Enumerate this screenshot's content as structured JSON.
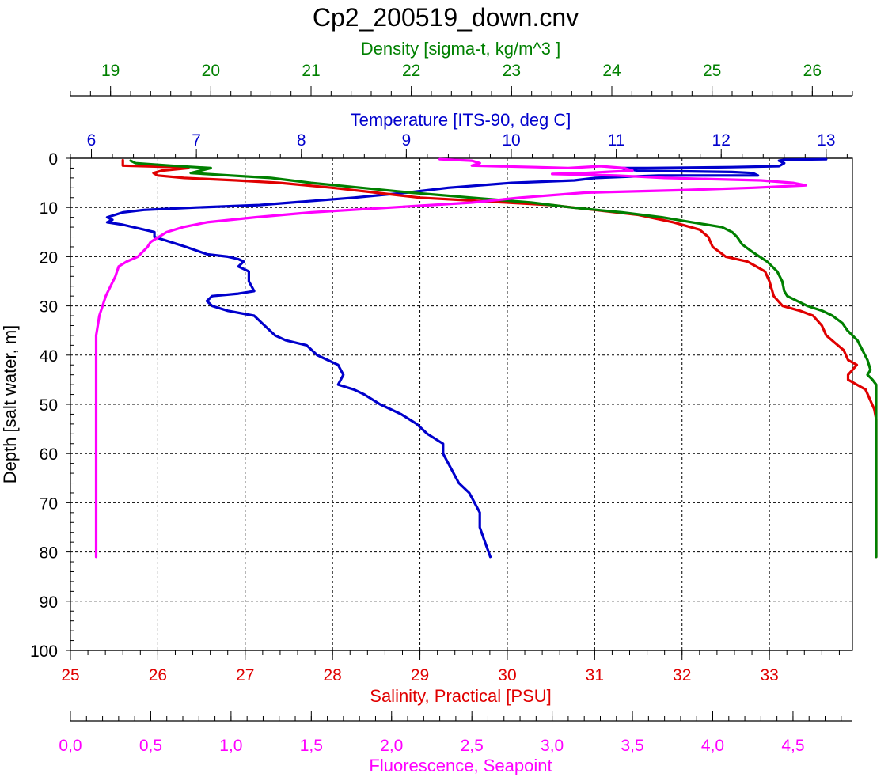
{
  "chart_data": {
    "type": "line",
    "title": "Cp2_200519_down.cnv",
    "y_axis": {
      "label": "Depth [salt water, m]",
      "range": [
        0,
        100
      ],
      "reversed": true,
      "ticks": [
        "0",
        "10",
        "20",
        "30",
        "40",
        "50",
        "60",
        "70",
        "80",
        "90",
        "100"
      ]
    },
    "grid": true,
    "axes": {
      "density": {
        "label": "Density [sigma-t, kg/m^3 ]",
        "position": "top",
        "color": "#008000",
        "range": [
          18.6,
          26.4
        ],
        "ticks": [
          "19",
          "20",
          "21",
          "22",
          "23",
          "24",
          "25",
          "26"
        ]
      },
      "temperature": {
        "label": "Temperature [ITS-90, deg C]",
        "position": "top",
        "color": "#0000cc",
        "range": [
          5.8,
          13.25
        ],
        "ticks": [
          "6",
          "7",
          "8",
          "9",
          "10",
          "11",
          "12",
          "13"
        ]
      },
      "salinity": {
        "label": "Salinity, Practical [PSU]",
        "position": "bottom",
        "color": "#e00000",
        "range": [
          25,
          33.95
        ],
        "ticks": [
          "25",
          "26",
          "27",
          "28",
          "29",
          "30",
          "31",
          "32",
          "33"
        ]
      },
      "fluorescence": {
        "label": "Fluorescence, Seapoint",
        "position": "bottom",
        "color": "#ff00ff",
        "range": [
          0,
          4.87
        ],
        "ticks": [
          "0,0",
          "0,5",
          "1,0",
          "1,5",
          "2,0",
          "2,5",
          "3,0",
          "3,5",
          "4,0",
          "4,5"
        ]
      }
    },
    "series": [
      {
        "name": "Temperature",
        "axis": "temperature",
        "color": "#0000cc",
        "points": [
          [
            13.0,
            0.2
          ],
          [
            12.6,
            0.3
          ],
          [
            12.55,
            0.5
          ],
          [
            12.6,
            1
          ],
          [
            12.55,
            1.6
          ],
          [
            12.1,
            1.8
          ],
          [
            11.3,
            2
          ],
          [
            11.05,
            2
          ],
          [
            11.2,
            2.5
          ],
          [
            12.1,
            2.8
          ],
          [
            12.3,
            3
          ],
          [
            12.35,
            3.5
          ],
          [
            11.4,
            3.5
          ],
          [
            10.8,
            4
          ],
          [
            10.6,
            4.5
          ],
          [
            10.0,
            5
          ],
          [
            9.4,
            6
          ],
          [
            9.0,
            7
          ],
          [
            8.5,
            8
          ],
          [
            7.6,
            9.5
          ],
          [
            7.0,
            10
          ],
          [
            6.5,
            10.5
          ],
          [
            6.3,
            11
          ],
          [
            6.15,
            12
          ],
          [
            6.2,
            12.5
          ],
          [
            6.15,
            13
          ],
          [
            6.3,
            13.5
          ],
          [
            6.5,
            14.5
          ],
          [
            6.6,
            15
          ],
          [
            6.6,
            16
          ],
          [
            6.75,
            17
          ],
          [
            6.9,
            18
          ],
          [
            7.1,
            19.5
          ],
          [
            7.3,
            20
          ],
          [
            7.4,
            20.5
          ],
          [
            7.45,
            21
          ],
          [
            7.4,
            22
          ],
          [
            7.5,
            23
          ],
          [
            7.5,
            25
          ],
          [
            7.55,
            27
          ],
          [
            7.4,
            27.5
          ],
          [
            7.15,
            28
          ],
          [
            7.1,
            29
          ],
          [
            7.15,
            30
          ],
          [
            7.3,
            31
          ],
          [
            7.55,
            32
          ],
          [
            7.65,
            34
          ],
          [
            7.75,
            36
          ],
          [
            7.85,
            37
          ],
          [
            8.05,
            38
          ],
          [
            8.15,
            40
          ],
          [
            8.25,
            41
          ],
          [
            8.35,
            42
          ],
          [
            8.4,
            44
          ],
          [
            8.35,
            46
          ],
          [
            8.5,
            47
          ],
          [
            8.6,
            48
          ],
          [
            8.75,
            50
          ],
          [
            8.95,
            52
          ],
          [
            9.1,
            54
          ],
          [
            9.2,
            56
          ],
          [
            9.35,
            58
          ],
          [
            9.35,
            60
          ],
          [
            9.4,
            62
          ],
          [
            9.45,
            64
          ],
          [
            9.5,
            66
          ],
          [
            9.6,
            68
          ],
          [
            9.65,
            70
          ],
          [
            9.7,
            72
          ],
          [
            9.7,
            75
          ],
          [
            9.75,
            78
          ],
          [
            9.8,
            81
          ]
        ]
      },
      {
        "name": "Salinity",
        "axis": "salinity",
        "color": "#e00000",
        "points": [
          [
            25.6,
            0.4
          ],
          [
            25.6,
            1.5
          ],
          [
            26.2,
            1.8
          ],
          [
            26.35,
            2
          ],
          [
            26.05,
            2.5
          ],
          [
            25.95,
            3
          ],
          [
            26.0,
            3.5
          ],
          [
            26.3,
            4
          ],
          [
            26.9,
            4.5
          ],
          [
            27.4,
            5
          ],
          [
            28.0,
            6
          ],
          [
            28.5,
            7
          ],
          [
            29.0,
            8
          ],
          [
            29.5,
            8.5
          ],
          [
            30.0,
            9
          ],
          [
            30.5,
            9.5
          ],
          [
            31.0,
            10.5
          ],
          [
            31.5,
            11.5
          ],
          [
            31.9,
            13
          ],
          [
            32.2,
            14.5
          ],
          [
            32.3,
            16
          ],
          [
            32.35,
            18
          ],
          [
            32.5,
            20
          ],
          [
            32.75,
            21
          ],
          [
            32.85,
            22
          ],
          [
            32.95,
            23
          ],
          [
            33.0,
            25
          ],
          [
            33.05,
            28
          ],
          [
            33.15,
            30
          ],
          [
            33.35,
            31
          ],
          [
            33.5,
            32
          ],
          [
            33.6,
            34
          ],
          [
            33.65,
            36
          ],
          [
            33.75,
            37.5
          ],
          [
            33.85,
            39
          ],
          [
            33.9,
            41
          ],
          [
            34.0,
            42
          ],
          [
            33.95,
            43
          ],
          [
            33.9,
            44
          ],
          [
            33.9,
            45
          ],
          [
            34.0,
            46
          ],
          [
            34.1,
            47
          ],
          [
            34.15,
            49
          ],
          [
            34.2,
            51
          ],
          [
            34.3,
            53
          ],
          [
            34.35,
            55
          ],
          [
            34.4,
            57
          ],
          [
            34.45,
            60
          ],
          [
            34.5,
            63
          ],
          [
            34.55,
            66
          ],
          [
            34.6,
            69
          ],
          [
            34.65,
            72
          ],
          [
            34.7,
            75
          ],
          [
            34.75,
            78
          ],
          [
            34.8,
            81
          ]
        ]
      },
      {
        "name": "Density",
        "axis": "density",
        "color": "#008000",
        "points": [
          [
            19.2,
            0.5
          ],
          [
            19.25,
            1
          ],
          [
            19.6,
            1.5
          ],
          [
            20.0,
            2
          ],
          [
            19.9,
            2.5
          ],
          [
            19.8,
            3
          ],
          [
            20.2,
            3.5
          ],
          [
            20.6,
            4
          ],
          [
            21.0,
            5
          ],
          [
            21.5,
            6
          ],
          [
            22.0,
            7
          ],
          [
            22.6,
            8
          ],
          [
            23.2,
            9
          ],
          [
            23.6,
            10
          ],
          [
            24.1,
            11
          ],
          [
            24.5,
            12
          ],
          [
            24.8,
            13
          ],
          [
            25.1,
            14
          ],
          [
            25.2,
            15
          ],
          [
            25.25,
            16
          ],
          [
            25.3,
            17.5
          ],
          [
            25.4,
            19
          ],
          [
            25.55,
            21
          ],
          [
            25.65,
            23
          ],
          [
            25.7,
            25
          ],
          [
            25.72,
            27
          ],
          [
            25.75,
            28
          ],
          [
            25.85,
            29
          ],
          [
            25.95,
            30
          ],
          [
            26.1,
            31
          ],
          [
            26.2,
            32
          ],
          [
            26.3,
            33.5
          ],
          [
            26.35,
            35
          ],
          [
            26.45,
            37
          ],
          [
            26.5,
            39
          ],
          [
            26.55,
            41
          ],
          [
            26.58,
            43
          ],
          [
            26.55,
            44
          ],
          [
            26.6,
            45
          ],
          [
            26.65,
            46
          ],
          [
            26.7,
            48
          ],
          [
            26.72,
            51
          ],
          [
            26.75,
            55
          ],
          [
            26.78,
            60
          ],
          [
            26.82,
            65
          ],
          [
            26.86,
            70
          ],
          [
            26.9,
            75
          ],
          [
            26.94,
            78
          ],
          [
            26.98,
            81
          ]
        ]
      },
      {
        "name": "Fluorescence",
        "axis": "fluorescence",
        "color": "#ff00ff",
        "points": [
          [
            2.3,
            0.2
          ],
          [
            2.5,
            0.5
          ],
          [
            2.55,
            1
          ],
          [
            2.5,
            1.5
          ],
          [
            2.9,
            1.8
          ],
          [
            3.1,
            2
          ],
          [
            3.3,
            1.6
          ],
          [
            3.45,
            2
          ],
          [
            3.5,
            2.5
          ],
          [
            3.2,
            3
          ],
          [
            3.0,
            3.2
          ],
          [
            3.4,
            3.5
          ],
          [
            3.7,
            4
          ],
          [
            4.3,
            4.5
          ],
          [
            4.5,
            5
          ],
          [
            4.58,
            5.5
          ],
          [
            4.25,
            6
          ],
          [
            3.8,
            6.5
          ],
          [
            3.2,
            7
          ],
          [
            2.8,
            8
          ],
          [
            2.5,
            9
          ],
          [
            2.0,
            10
          ],
          [
            1.5,
            11
          ],
          [
            1.15,
            12
          ],
          [
            0.85,
            13
          ],
          [
            0.7,
            14
          ],
          [
            0.6,
            15
          ],
          [
            0.55,
            16
          ],
          [
            0.5,
            17
          ],
          [
            0.48,
            18
          ],
          [
            0.45,
            19
          ],
          [
            0.42,
            20
          ],
          [
            0.35,
            21
          ],
          [
            0.3,
            22
          ],
          [
            0.28,
            24
          ],
          [
            0.25,
            26
          ],
          [
            0.22,
            28
          ],
          [
            0.2,
            30
          ],
          [
            0.18,
            32
          ],
          [
            0.17,
            34
          ],
          [
            0.16,
            36
          ],
          [
            0.16,
            40
          ],
          [
            0.16,
            50
          ],
          [
            0.16,
            60
          ],
          [
            0.16,
            70
          ],
          [
            0.16,
            81
          ]
        ]
      }
    ]
  }
}
